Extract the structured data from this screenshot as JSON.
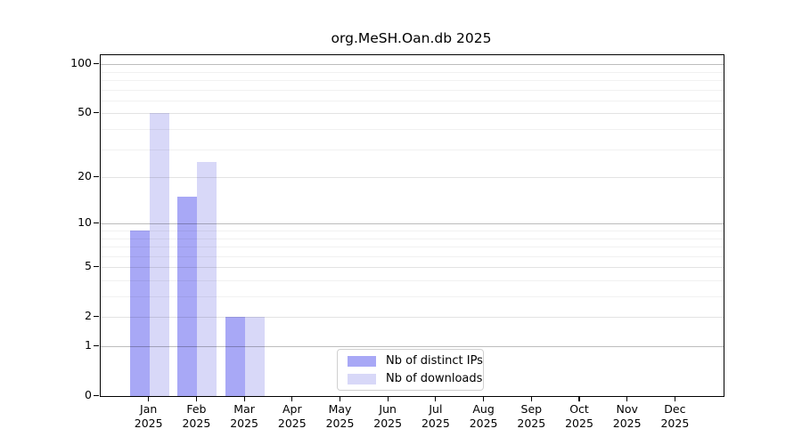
{
  "title": "org.MeSH.Oan.db 2025",
  "chart_data": {
    "type": "bar",
    "title": "org.MeSH.Oan.db 2025",
    "categories": [
      "Jan",
      "Feb",
      "Mar",
      "Apr",
      "May",
      "Jun",
      "Jul",
      "Aug",
      "Sep",
      "Oct",
      "Nov",
      "Dec"
    ],
    "category_year": "2025",
    "series": [
      {
        "name": "Nb of distinct IPs",
        "color": "#a8a8f6",
        "values": [
          9,
          15,
          2,
          0,
          0,
          0,
          0,
          0,
          0,
          0,
          0,
          0
        ]
      },
      {
        "name": "Nb of downloads",
        "color": "#d8d8f8",
        "values": [
          50,
          25,
          2,
          0,
          0,
          0,
          0,
          0,
          0,
          0,
          0,
          0
        ]
      }
    ],
    "y_scale": "log10(1+v)",
    "y_ticks": [
      100,
      50,
      20,
      10,
      5,
      2,
      1,
      0
    ],
    "ylim": [
      0,
      114
    ],
    "grid": "horizontal",
    "legend_position": "inside-bottom-center"
  }
}
